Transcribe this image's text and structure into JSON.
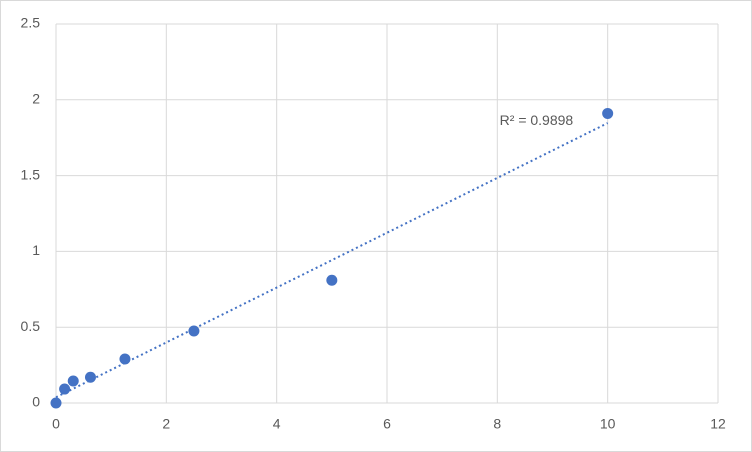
{
  "chart_data": {
    "type": "scatter",
    "x": [
      0,
      0.156,
      0.3125,
      0.625,
      1.25,
      2.5,
      5,
      10
    ],
    "values": [
      0,
      0.092,
      0.145,
      0.17,
      0.29,
      0.475,
      0.81,
      1.91
    ],
    "color": "#4472c4",
    "xlim": [
      0,
      12
    ],
    "xticks": [
      0,
      2,
      4,
      6,
      8,
      10,
      12
    ],
    "ylim": [
      0,
      2.5
    ],
    "yticks": [
      0,
      0.5,
      1,
      1.5,
      2,
      2.5
    ],
    "grid": true,
    "trendline": "linear",
    "annotation": "R² = 0.9898"
  }
}
